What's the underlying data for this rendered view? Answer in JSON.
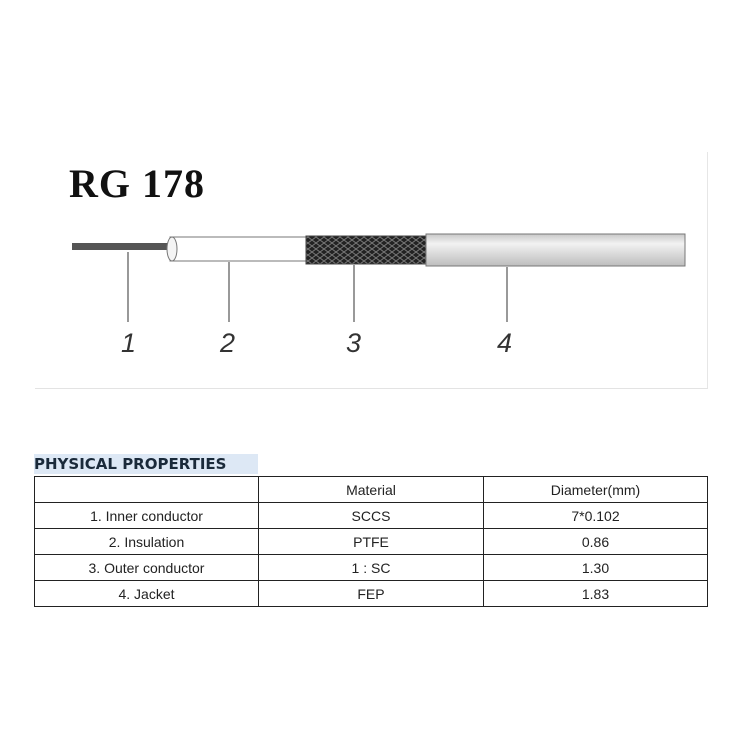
{
  "title": "RG 178",
  "callouts": [
    "1",
    "2",
    "3",
    "4"
  ],
  "section_title": "PHYSICAL PROPERTIES",
  "table": {
    "headers": [
      "",
      "Material",
      "Diameter(mm)"
    ],
    "rows": [
      [
        "1. Inner conductor",
        "SCCS",
        "7*0.102"
      ],
      [
        "2. Insulation",
        "PTFE",
        "0.86"
      ],
      [
        "3. Outer conductor",
        "1 : SC",
        "1.30"
      ],
      [
        "4. Jacket",
        "FEP",
        "1.83"
      ]
    ]
  }
}
